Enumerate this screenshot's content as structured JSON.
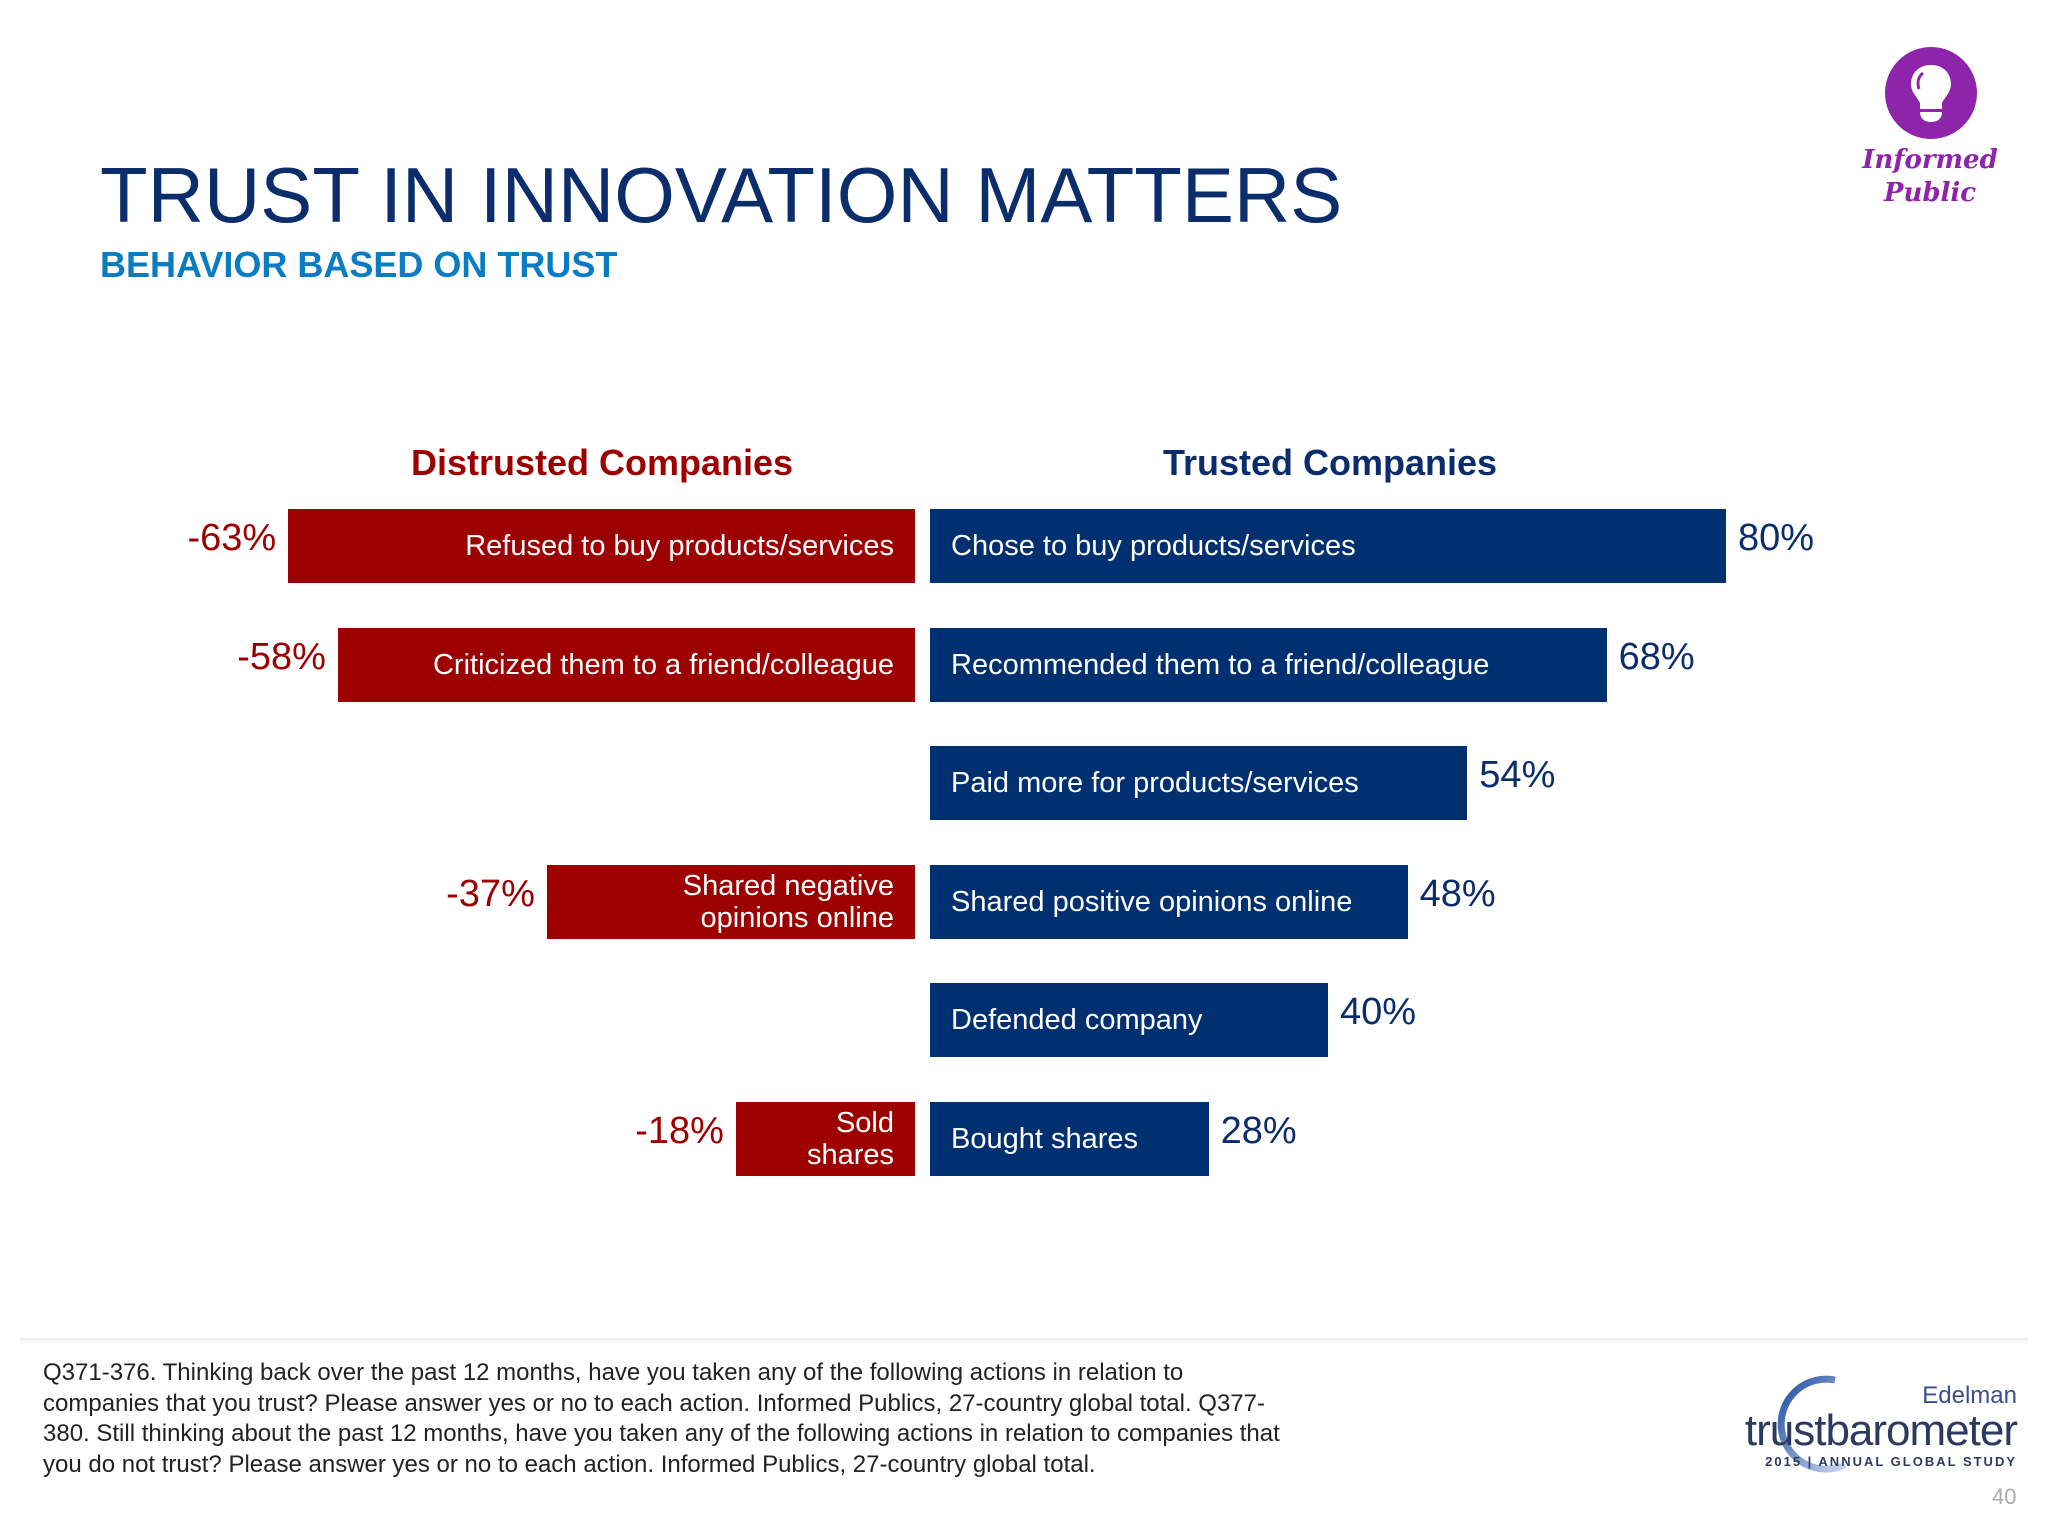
{
  "header": {
    "title": "TRUST IN INNOVATION MATTERS",
    "subtitle": "BEHAVIOR BASED ON TRUST"
  },
  "badge": {
    "icon": "lightbulb-icon",
    "label_line1": "Informed",
    "label_line2": "Public",
    "color": "#8e24aa"
  },
  "chart_data": {
    "type": "bar",
    "orientation": "horizontal-diverging",
    "colors": {
      "distrusted": "#9c0000",
      "trusted": "#003070"
    },
    "series": [
      {
        "name": "Distrusted Companies",
        "rows": [
          {
            "label": "Refused to buy products/services",
            "value": -63,
            "value_label": "-63%"
          },
          {
            "label": "Criticized them to a friend/colleague",
            "value": -58,
            "value_label": "-58%"
          },
          null,
          {
            "label": "Shared negative opinions online",
            "label_lines": [
              "Shared negative",
              "opinions online"
            ],
            "value": -37,
            "value_label": "-37%"
          },
          null,
          {
            "label": "Sold shares",
            "label_lines": [
              "Sold",
              "shares"
            ],
            "value": -18,
            "value_label": "-18%"
          }
        ]
      },
      {
        "name": "Trusted Companies",
        "rows": [
          {
            "label": "Chose to buy products/services",
            "value": 80,
            "value_label": "80%"
          },
          {
            "label": "Recommended them to a friend/colleague",
            "value": 68,
            "value_label": "68%"
          },
          {
            "label": "Paid more for products/services",
            "value": 54,
            "value_label": "54%"
          },
          {
            "label": "Shared positive opinions online",
            "value": 48,
            "value_label": "48%"
          },
          {
            "label": "Defended company",
            "value": 40,
            "value_label": "40%"
          },
          {
            "label": "Bought shares",
            "value": 28,
            "value_label": "28%"
          }
        ]
      }
    ]
  },
  "footer": {
    "note": "Q371-376. Thinking back over the past 12 months, have you taken any of the following actions in relation to companies that you trust? Please answer yes or no to each action. Informed Publics, 27-country global total. Q377-380. Still thinking about the past 12 months, have you taken any of the following actions in relation to companies that you do not trust? Please answer yes or no to each action. Informed Publics, 27-country global total.",
    "logo": {
      "brand": "Edelman",
      "name": "trustbarometer",
      "tagline": "2015 | ANNUAL GLOBAL STUDY"
    },
    "page_number": "40"
  }
}
